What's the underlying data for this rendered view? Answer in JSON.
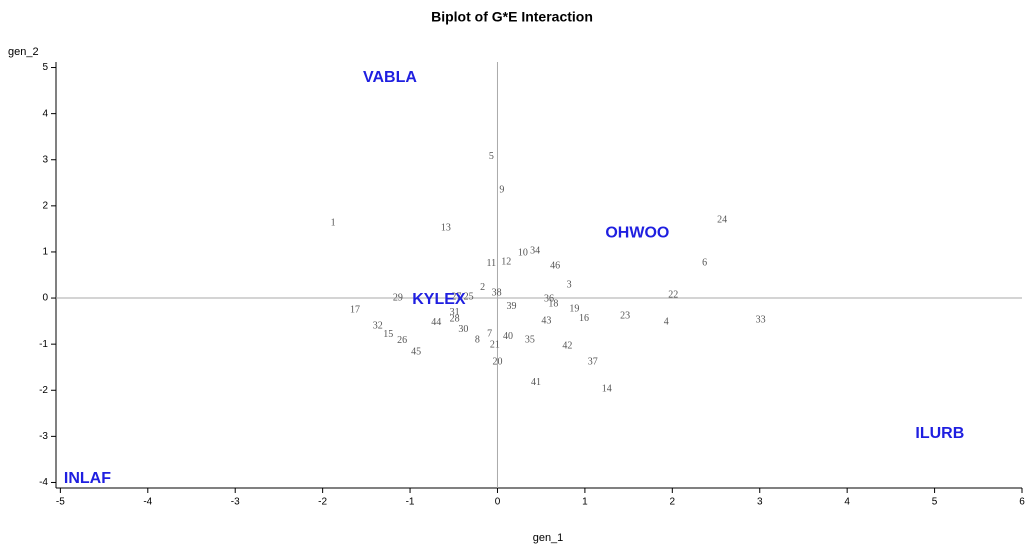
{
  "chart_data": {
    "type": "scatter",
    "title": "Biplot of G*E Interaction",
    "xlabel": "gen_1",
    "ylabel": "gen_2",
    "xlim": [
      -5.05,
      6.0
    ],
    "ylim": [
      -4.12,
      5.12
    ],
    "xticks": [
      -5,
      -4,
      -3,
      -2,
      -1,
      0,
      1,
      2,
      3,
      4,
      5,
      6
    ],
    "yticks": [
      -4,
      -3,
      -2,
      -1,
      0,
      1,
      2,
      3,
      4,
      5
    ],
    "reference_lines": true,
    "series": [
      {
        "color": "#555555",
        "labels": [
          "1",
          "2",
          "3",
          "4",
          "5",
          "6",
          "7",
          "8",
          "9",
          "10",
          "11",
          "12",
          "13",
          "14",
          "15",
          "16",
          "17",
          "18",
          "19",
          "20",
          "21",
          "22",
          "23",
          "24",
          "25",
          "26",
          "27",
          "28",
          "29",
          "30",
          "31",
          "32",
          "33",
          "34",
          "35",
          "36",
          "37",
          "38",
          "39",
          "40",
          "41",
          "42",
          "43",
          "44",
          "45",
          "46"
        ],
        "x": [
          -1.88,
          -0.17,
          0.82,
          1.93,
          -0.07,
          2.37,
          -0.09,
          -0.23,
          0.05,
          0.29,
          -0.07,
          0.1,
          -0.59,
          1.25,
          -1.25,
          0.99,
          -1.63,
          0.64,
          0.88,
          0,
          -0.03,
          2.01,
          1.46,
          2.57,
          -0.33,
          -1.09,
          -0.47,
          -0.49,
          -1.14,
          -0.39,
          -0.49,
          -1.37,
          3.01,
          0.43,
          0.37,
          0.59,
          1.09,
          -0.01,
          0.16,
          0.12,
          0.44,
          0.8,
          0.56,
          -0.7,
          -0.93,
          0.66
        ],
        "values": [
          1.62,
          0.22,
          0.28,
          -0.52,
          3.07,
          0.76,
          -0.78,
          -0.91,
          2.34,
          0.97,
          0.74,
          0.78,
          1.52,
          -1.98,
          -0.8,
          -0.45,
          -0.26,
          -0.13,
          -0.24,
          -1.39,
          -1.02,
          0.06,
          -0.39,
          1.69,
          0.02,
          -0.93,
          0.02,
          -0.46,
          0,
          -0.69,
          -0.32,
          -0.61,
          -0.48,
          1.02,
          -0.91,
          -0.02,
          -1.39,
          0.11,
          -0.19,
          -0.84,
          -1.84,
          -1.04,
          -0.5,
          -0.54,
          -1.17,
          0.69
        ]
      },
      {
        "color": "#1f1fe0",
        "labels": [
          "VABLA",
          "OHWOO",
          "KYLEX",
          "ILURB",
          "INLAF"
        ],
        "x": [
          -1.23,
          1.6,
          -0.67,
          5.06,
          -4.69
        ],
        "values": [
          4.78,
          1.41,
          -0.04,
          -2.94,
          -3.92
        ]
      }
    ]
  }
}
